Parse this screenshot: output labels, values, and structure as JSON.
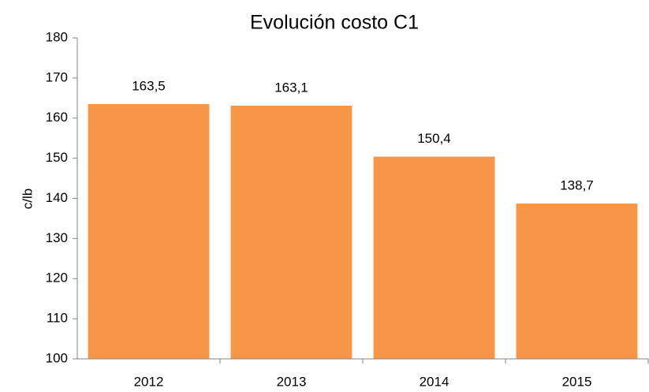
{
  "chart_data": {
    "type": "bar",
    "title": "Evolución  costo C1",
    "y_label": "c/lb",
    "categories": [
      "2012",
      "2013",
      "2014",
      "2015"
    ],
    "values": [
      163.5,
      163.1,
      150.4,
      138.7
    ],
    "value_labels": [
      "163,5",
      "163,1",
      "150,4",
      "138,7"
    ],
    "color": "#f79646",
    "ylim": [
      100,
      180
    ],
    "yticks": [
      100,
      110,
      120,
      130,
      140,
      150,
      160,
      170,
      180
    ],
    "grid": false
  }
}
